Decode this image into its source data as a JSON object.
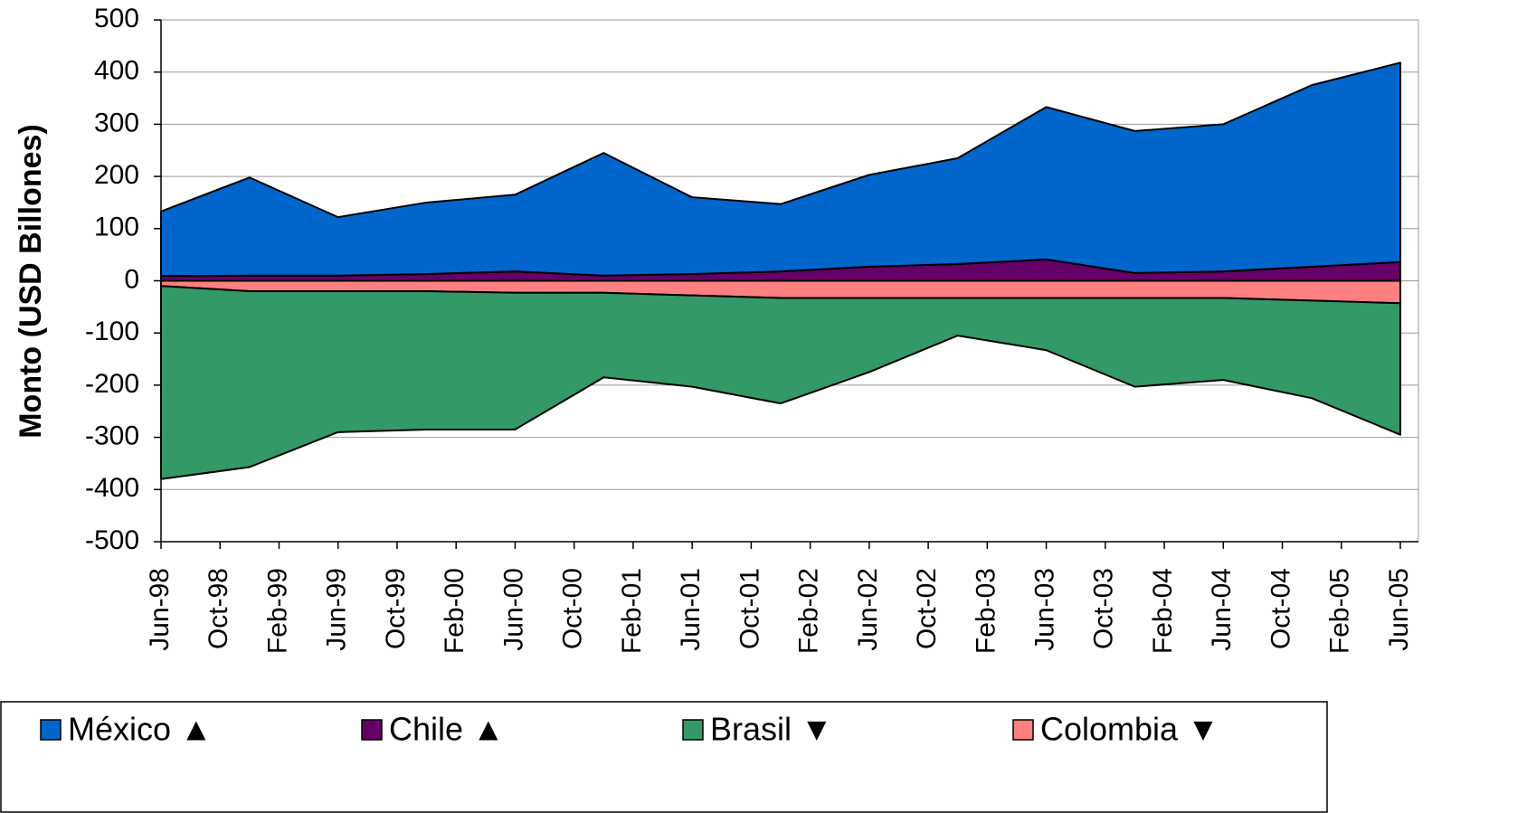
{
  "chart_data": {
    "type": "stacked_area",
    "y_label": "Monto (USD Billones)",
    "xlim": [
      0,
      84
    ],
    "xticks": [
      {
        "value": 0,
        "label": "Jun-98"
      },
      {
        "value": 4,
        "label": "Oct-98"
      },
      {
        "value": 8,
        "label": "Feb-99"
      },
      {
        "value": 12,
        "label": "Jun-99"
      },
      {
        "value": 16,
        "label": "Oct-99"
      },
      {
        "value": 20,
        "label": "Feb-00"
      },
      {
        "value": 24,
        "label": "Jun-00"
      },
      {
        "value": 28,
        "label": "Oct-00"
      },
      {
        "value": 32,
        "label": "Feb-01"
      },
      {
        "value": 36,
        "label": "Jun-01"
      },
      {
        "value": 40,
        "label": "Oct-01"
      },
      {
        "value": 44,
        "label": "Feb-02"
      },
      {
        "value": 48,
        "label": "Jun-02"
      },
      {
        "value": 52,
        "label": "Oct-02"
      },
      {
        "value": 56,
        "label": "Feb-03"
      },
      {
        "value": 60,
        "label": "Jun-03"
      },
      {
        "value": 64,
        "label": "Oct-03"
      },
      {
        "value": 68,
        "label": "Feb-04"
      },
      {
        "value": 72,
        "label": "Jun-04"
      },
      {
        "value": 76,
        "label": "Oct-04"
      },
      {
        "value": 80,
        "label": "Feb-05"
      },
      {
        "value": 84,
        "label": "Jun-05"
      }
    ],
    "x": [
      0,
      6,
      12,
      18,
      24,
      30,
      36,
      42,
      48,
      54,
      60,
      66,
      72,
      78,
      84
    ],
    "ylim": [
      -500,
      500
    ],
    "yticks": [
      -500,
      -400,
      -300,
      -200,
      -100,
      0,
      100,
      200,
      300,
      400,
      500
    ],
    "grid": true,
    "series": [
      {
        "name": "México ▲",
        "color": "#0066cc",
        "values": [
          124,
          188,
          112,
          137,
          147,
          235,
          147,
          129,
          176,
          203,
          292,
          272,
          282,
          348,
          382
        ]
      },
      {
        "name": "Chile  ▲",
        "color": "#660066",
        "values": [
          9,
          10,
          10,
          13,
          18,
          10,
          13,
          18,
          27,
          32,
          41,
          15,
          18,
          27,
          36
        ]
      },
      {
        "name": "Brasil  ▼",
        "color": "#339966",
        "values": [
          -370,
          -337,
          -270,
          -265,
          -262,
          -162,
          -175,
          -202,
          -142,
          -72,
          -100,
          -170,
          -157,
          -187,
          -252
        ]
      },
      {
        "name": "Colombia  ▼",
        "color": "#ff8080",
        "values": [
          -10,
          -20,
          -20,
          -20,
          -23,
          -23,
          -28,
          -33,
          -33,
          -33,
          -33,
          -33,
          -33,
          -38,
          -43
        ]
      }
    ]
  }
}
